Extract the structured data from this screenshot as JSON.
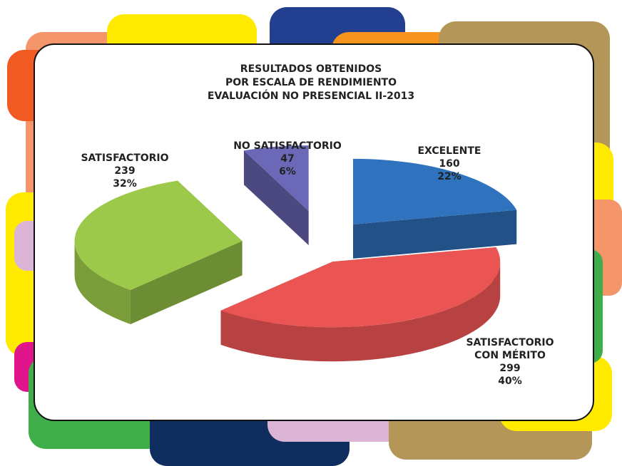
{
  "chart_data": {
    "type": "pie",
    "title": "RESULTADOS OBTENIDOS\nPOR ESCALA DE RENDIMIENTO\nEVALUACIÓN NO PRESENCIAL II-2013",
    "categories": [
      "EXCELENTE",
      "SATISFACTORIO CON MÉRITO",
      "SATISFACTORIO",
      "NO SATISFACTORIO"
    ],
    "values": [
      160,
      299,
      239,
      47
    ],
    "percent_labels": [
      "22%",
      "40%",
      "32%",
      "6%"
    ],
    "colors": [
      "#2f73bf",
      "#ea5453",
      "#9cc94a",
      "#6c68b8"
    ]
  }
}
